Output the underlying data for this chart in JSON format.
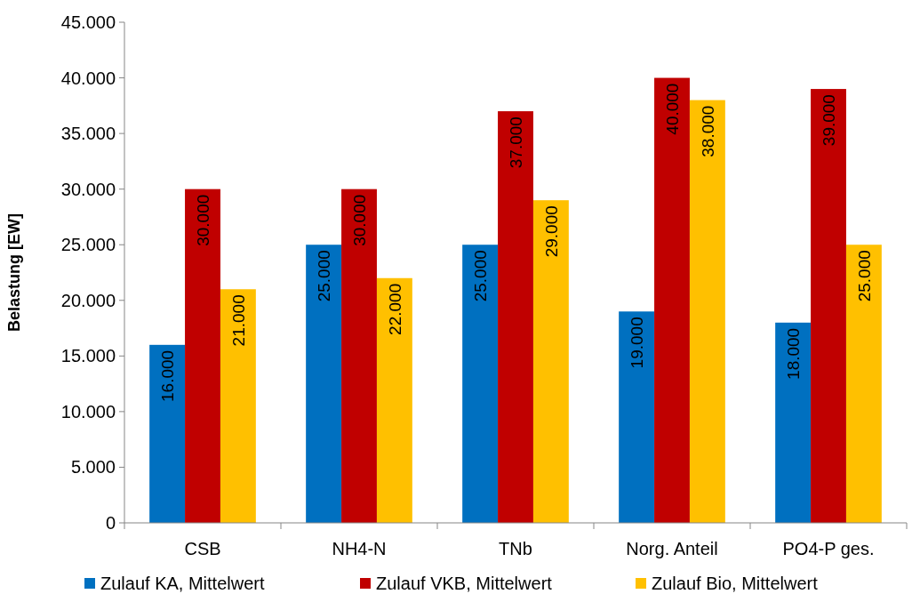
{
  "chart_data": {
    "type": "bar",
    "ylabel": "Belastung [EW]",
    "categories": [
      "CSB",
      "NH4-N",
      "TNb",
      "Norg. Anteil",
      "PO4-P ges."
    ],
    "series": [
      {
        "name": "Zulauf KA, Mittelwert",
        "color": "#0070c0",
        "values": [
          16000,
          25000,
          25000,
          19000,
          18000
        ],
        "value_labels": [
          "16.000",
          "25.000",
          "25.000",
          "19.000",
          "18.000"
        ]
      },
      {
        "name": "Zulauf VKB, Mittelwert",
        "color": "#c00000",
        "values": [
          30000,
          30000,
          37000,
          40000,
          39000
        ],
        "value_labels": [
          "30.000",
          "30.000",
          "37.000",
          "40.000",
          "39.000"
        ]
      },
      {
        "name": "Zulauf Bio, Mittelwert",
        "color": "#ffc000",
        "values": [
          21000,
          22000,
          29000,
          38000,
          25000
        ],
        "value_labels": [
          "21.000",
          "22.000",
          "29.000",
          "38.000",
          "25.000"
        ]
      }
    ],
    "ylim": [
      0,
      45000
    ],
    "yticks": [
      0,
      {
        "value": 5000,
        "label": "5.000"
      },
      {
        "value": 10000,
        "label": "10.000"
      },
      {
        "value": 15000,
        "label": "15.000"
      },
      {
        "value": 20000,
        "label": "20.000"
      },
      {
        "value": 25000,
        "label": "25.000"
      },
      {
        "value": 30000,
        "label": "30.000"
      },
      {
        "value": 35000,
        "label": "35.000"
      },
      {
        "value": 40000,
        "label": "40.000"
      },
      {
        "value": 45000,
        "label": "45.000"
      }
    ],
    "grid": false,
    "legend": "bottom"
  }
}
